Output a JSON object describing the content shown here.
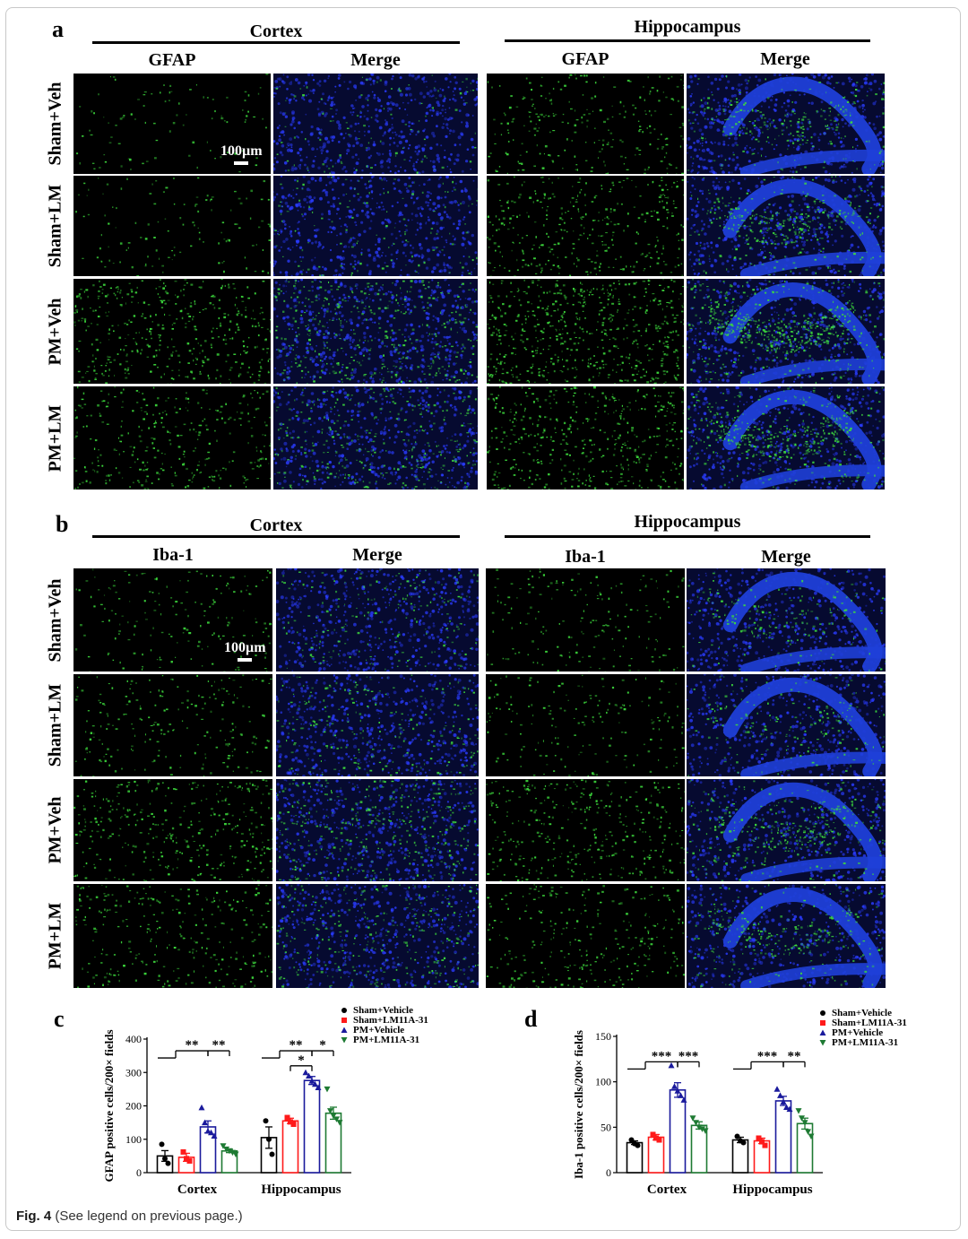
{
  "caption": {
    "label": "Fig. 4",
    "text": "(See legend on previous page.)"
  },
  "panel_a": {
    "letter": "a",
    "region_left": "Cortex",
    "region_right": "Hippocampus",
    "col_left_1": "GFAP",
    "col_left_2": "Merge",
    "col_right_1": "GFAP",
    "col_right_2": "Merge",
    "rows": [
      "Sham+Veh",
      "Sham+LM",
      "PM+Veh",
      "PM+LM"
    ],
    "scale_bar": "100µm",
    "green_intensity": [
      0.08,
      0.12,
      0.55,
      0.4
    ],
    "hippo_green_intensity": [
      0.3,
      0.45,
      0.8,
      0.6
    ]
  },
  "panel_b": {
    "letter": "b",
    "region_left": "Cortex",
    "region_right": "Hippocampus",
    "col_left_1": "Iba-1",
    "col_left_2": "Merge",
    "col_right_1": "Iba-1",
    "col_right_2": "Merge",
    "rows": [
      "Sham+Veh",
      "Sham+LM",
      "PM+Veh",
      "PM+LM"
    ],
    "scale_bar": "100µm",
    "green_intensity": [
      0.2,
      0.25,
      0.45,
      0.35
    ],
    "hippo_green_intensity": [
      0.2,
      0.2,
      0.45,
      0.35
    ]
  },
  "colors": {
    "green": "#3ddc3d",
    "blue": "#1f3fd8",
    "nucleus": "#2a3cff",
    "series": [
      "#000000",
      "#ff1a1a",
      "#1a1a9c",
      "#1e7a33"
    ]
  },
  "chart_data": [
    {
      "letter": "c",
      "type": "bar",
      "ylabel": "GFAP positive cells/200× fields",
      "ylim": [
        0,
        400
      ],
      "yticks": [
        0,
        100,
        200,
        300,
        400
      ],
      "categories": [
        "Cortex",
        "Hippocampus"
      ],
      "series": [
        {
          "name": "Sham+Vehicle",
          "marker": "circle",
          "values": [
            50,
            105
          ],
          "sem": [
            16,
            32
          ],
          "points": [
            [
              85,
              42,
              28
            ],
            [
              155,
              100,
              55
            ]
          ]
        },
        {
          "name": "Sham+LM11A-31",
          "marker": "square",
          "values": [
            46,
            155
          ],
          "sem": [
            12,
            8
          ],
          "points": [
            [
              62,
              42,
              35
            ],
            [
              165,
              152,
              145
            ]
          ]
        },
        {
          "name": "PM+Vehicle",
          "marker": "triangle",
          "values": [
            137,
            276
          ],
          "sem": [
            18,
            12
          ],
          "points": [
            [
              195,
              150,
              125,
              120,
              110
            ],
            [
              300,
              290,
              275,
              265,
              255
            ]
          ]
        },
        {
          "name": "PM+LM11A-31",
          "marker": "triangle-down",
          "values": [
            65,
            178
          ],
          "sem": [
            5,
            18
          ],
          "points": [
            [
              80,
              70,
              65,
              60,
              55
            ],
            [
              250,
              185,
              170,
              160,
              150
            ]
          ]
        }
      ],
      "significance": [
        {
          "label": "**",
          "cat": 0,
          "from": 0,
          "to": 2,
          "y": 365,
          "group": true
        },
        {
          "label": "**",
          "cat": 0,
          "from": 2,
          "to": 3,
          "y": 365
        },
        {
          "label": "**",
          "cat": 1,
          "from": 0,
          "to": 2,
          "y": 365,
          "group": true
        },
        {
          "label": "*",
          "cat": 1,
          "from": 2,
          "to": 3,
          "y": 365
        },
        {
          "label": "*",
          "cat": 1,
          "from": 1,
          "to": 2,
          "y": 320
        }
      ],
      "legend_position": "top-right"
    },
    {
      "letter": "d",
      "type": "bar",
      "ylabel": "Iba-1 positive cells/200× fields",
      "ylim": [
        0,
        150
      ],
      "yticks": [
        0,
        50,
        100,
        150
      ],
      "categories": [
        "Cortex",
        "Hippocampus"
      ],
      "series": [
        {
          "name": "Sham+Vehicle",
          "marker": "circle",
          "values": [
            33,
            36
          ],
          "sem": [
            2,
            3
          ],
          "points": [
            [
              36,
              32,
              30
            ],
            [
              40,
              35,
              33
            ]
          ]
        },
        {
          "name": "Sham+LM11A-31",
          "marker": "square",
          "values": [
            39,
            35
          ],
          "sem": [
            3,
            3
          ],
          "points": [
            [
              42,
              38,
              36
            ],
            [
              38,
              34,
              30
            ]
          ]
        },
        {
          "name": "PM+Vehicle",
          "marker": "triangle",
          "values": [
            91,
            79
          ],
          "sem": [
            8,
            5
          ],
          "points": [
            [
              118,
              95,
              90,
              85,
              80
            ],
            [
              92,
              85,
              78,
              72,
              70
            ]
          ]
        },
        {
          "name": "PM+LM11A-31",
          "marker": "triangle-down",
          "values": [
            52,
            54
          ],
          "sem": [
            4,
            6
          ],
          "points": [
            [
              60,
              55,
              50,
              48,
              46
            ],
            [
              68,
              60,
              55,
              45,
              40
            ]
          ]
        }
      ],
      "significance": [
        {
          "label": "***",
          "cat": 0,
          "from": 0,
          "to": 2,
          "y": 122,
          "group": true
        },
        {
          "label": "***",
          "cat": 0,
          "from": 2,
          "to": 3,
          "y": 122
        },
        {
          "label": "***",
          "cat": 1,
          "from": 0,
          "to": 2,
          "y": 122,
          "group": true
        },
        {
          "label": "**",
          "cat": 1,
          "from": 2,
          "to": 3,
          "y": 122
        }
      ],
      "legend_position": "top-right"
    }
  ]
}
